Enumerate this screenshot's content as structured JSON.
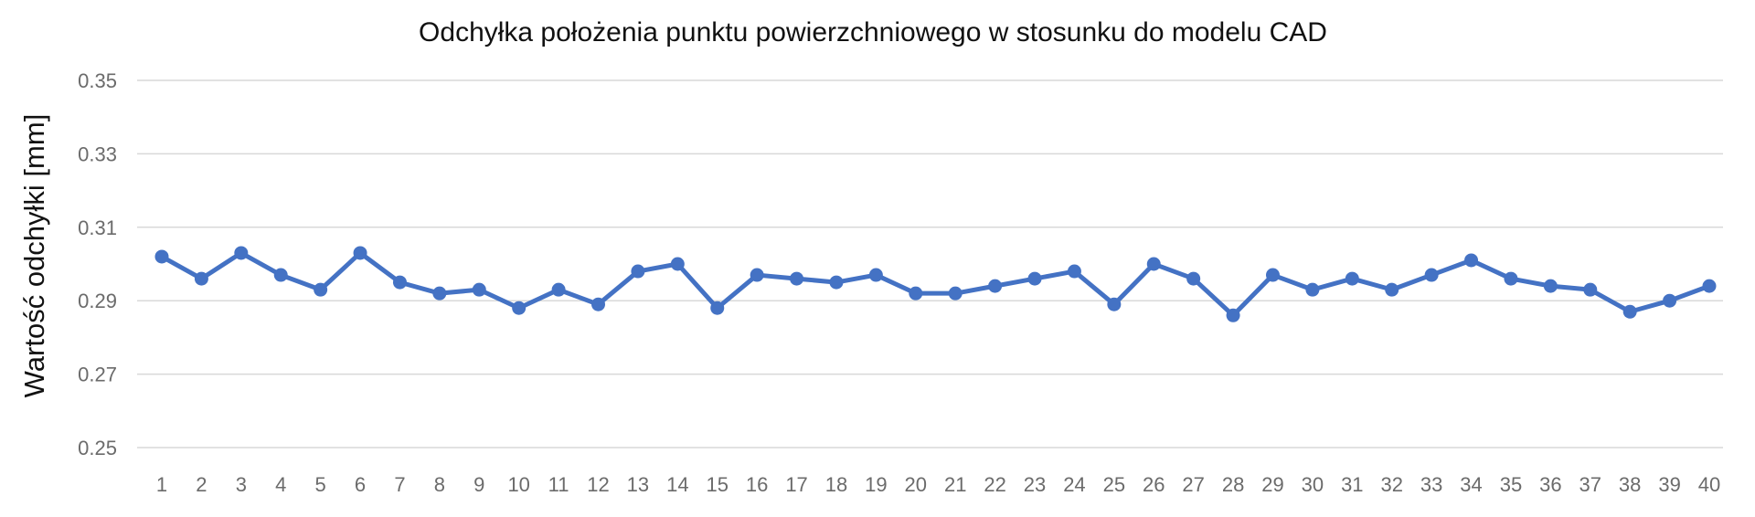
{
  "chart_data": {
    "type": "line",
    "title": "Odchyłka położenia punktu powierzchniowego w stosunku do modelu CAD",
    "xlabel": "",
    "ylabel": "Wartość odchyłki [mm]",
    "categories": [
      "1",
      "2",
      "3",
      "4",
      "5",
      "6",
      "7",
      "8",
      "9",
      "10",
      "11",
      "12",
      "13",
      "14",
      "15",
      "16",
      "17",
      "18",
      "19",
      "20",
      "21",
      "22",
      "23",
      "24",
      "25",
      "26",
      "27",
      "28",
      "29",
      "30",
      "31",
      "32",
      "33",
      "34",
      "35",
      "36",
      "37",
      "38",
      "39",
      "40"
    ],
    "series": [
      {
        "values": [
          0.302,
          0.296,
          0.303,
          0.297,
          0.293,
          0.303,
          0.295,
          0.292,
          0.293,
          0.288,
          0.293,
          0.289,
          0.298,
          0.3,
          0.288,
          0.297,
          0.296,
          0.295,
          0.297,
          0.292,
          0.292,
          0.294,
          0.296,
          0.298,
          0.289,
          0.3,
          0.296,
          0.286,
          0.297,
          0.293,
          0.296,
          0.293,
          0.297,
          0.301,
          0.296,
          0.294,
          0.293,
          0.287,
          0.29,
          0.294
        ],
        "color": "#4472C4"
      }
    ],
    "ylim": [
      0.25,
      0.35
    ],
    "yticks": [
      "0.35",
      "0.33",
      "0.31",
      "0.29",
      "0.27",
      "0.25"
    ],
    "grid": true,
    "legend": "none",
    "marker": "circle"
  }
}
